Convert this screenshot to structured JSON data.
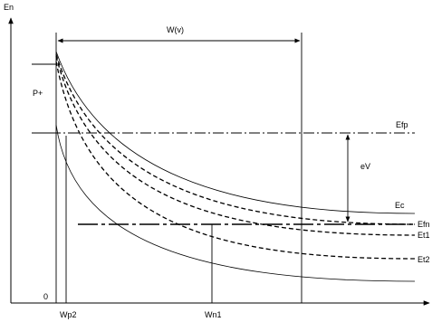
{
  "labels": {
    "y_axis": "En",
    "width_bracket": "W(v)",
    "region": "P+",
    "origin": "0",
    "efp": "Efp",
    "ev": "eV",
    "ec": "Ec",
    "efn": "Efn",
    "et1": "Et1",
    "et2": "Et2",
    "wp2": "Wp2",
    "wn1": "Wn1"
  },
  "colors": {
    "line": "#000000",
    "background": "#ffffff"
  }
}
